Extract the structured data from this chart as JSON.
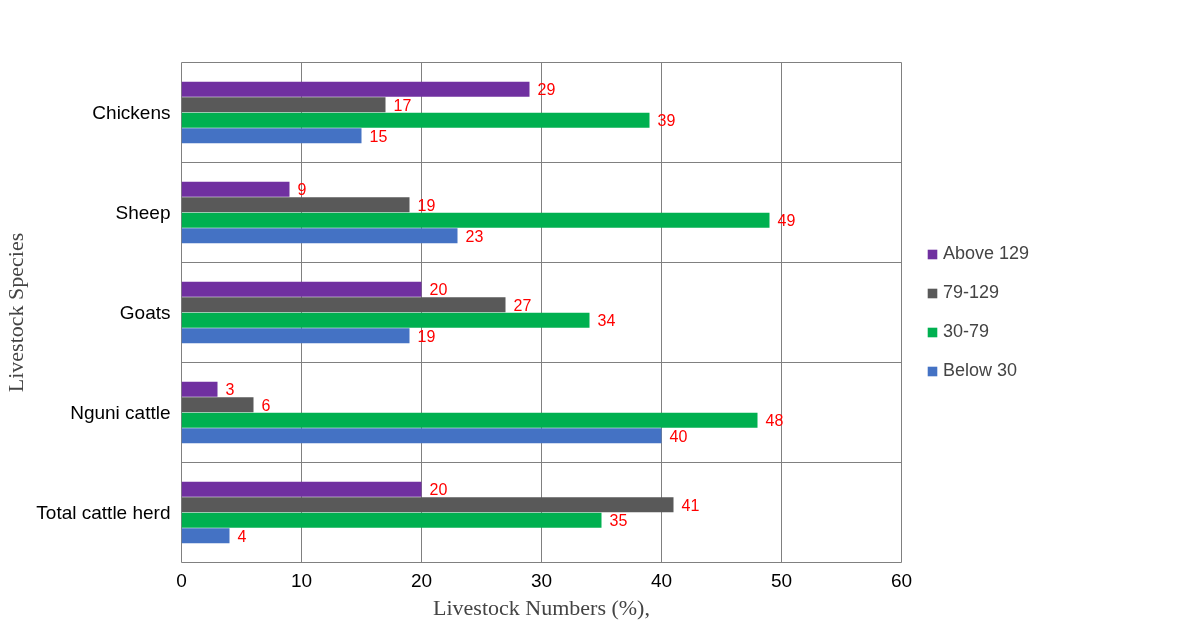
{
  "chart_data": {
    "type": "bar",
    "orientation": "horizontal",
    "xlabel": "Livestock Numbers (%),",
    "ylabel": "Livestock Species",
    "categories": [
      "Chickens",
      "Sheep",
      "Goats",
      "Nguni cattle",
      "Total cattle herd"
    ],
    "series": [
      {
        "name": "Above 129",
        "color": "#7030a0",
        "values": [
          29,
          9,
          20,
          3,
          20
        ]
      },
      {
        "name": "79-129",
        "color": "#595959",
        "values": [
          17,
          19,
          27,
          6,
          41
        ]
      },
      {
        "name": "30-79",
        "color": "#00b050",
        "values": [
          39,
          49,
          34,
          48,
          35
        ]
      },
      {
        "name": "Below 30",
        "color": "#4472c4",
        "values": [
          15,
          23,
          19,
          40,
          4
        ]
      }
    ],
    "xlim": [
      0,
      60
    ],
    "xticks": [
      0,
      10,
      20,
      30,
      40,
      50,
      60
    ],
    "grid": "x",
    "legend": "right",
    "data_labels": true
  }
}
